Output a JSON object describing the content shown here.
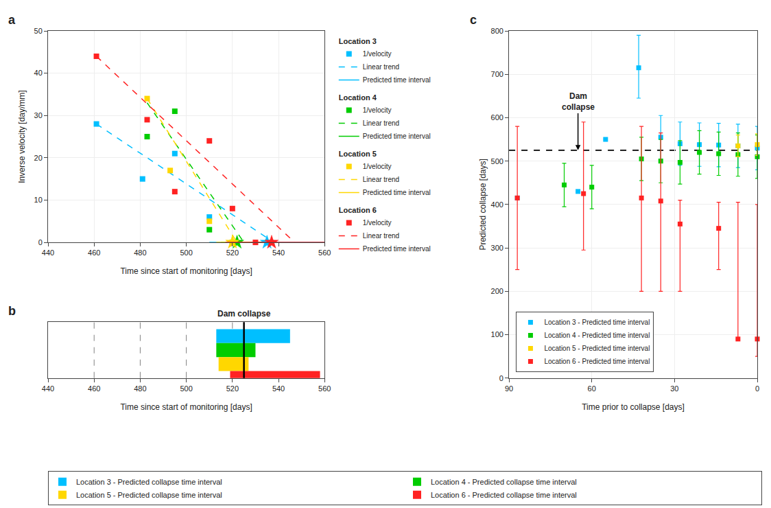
{
  "chart_data": [
    {
      "type": "scatter",
      "title": "a",
      "xlabel": "Time since start of monitoring [days]",
      "ylabel": "Inverse velocity [day/mm]",
      "xlim": [
        440,
        560
      ],
      "xticks": [
        440,
        460,
        480,
        500,
        520,
        540,
        560
      ],
      "ylim": [
        0,
        50
      ],
      "yticks": [
        0,
        10,
        20,
        30,
        40,
        50
      ],
      "grid": true,
      "legend": "right",
      "series": [
        {
          "name": "1/velocity",
          "group": "Location 3",
          "color": "#00BFFF",
          "type": "scatter",
          "marker": "square",
          "x": [
            461,
            481,
            495,
            510,
            520
          ],
          "values": [
            28,
            15,
            21,
            6,
            0
          ]
        },
        {
          "name": "Linear trend",
          "group": "Location 3",
          "color": "#00BFFF",
          "type": "line",
          "line_style": "dashed",
          "x": [
            461,
            538
          ],
          "values": [
            28,
            0
          ]
        },
        {
          "name": "Predicted time interval",
          "group": "Location 3",
          "color": "#00BFFF",
          "type": "line",
          "line_style": "solid",
          "marker": "star",
          "x": [
            510,
            560
          ],
          "values": [
            0,
            0
          ],
          "marker_at": {
            "x": 535,
            "y": 0
          }
        },
        {
          "name": "1/velocity",
          "group": "Location 4",
          "color": "#00CC00",
          "type": "scatter",
          "marker": "square",
          "x": [
            483,
            495,
            510,
            520
          ],
          "values": [
            25,
            31,
            3,
            0
          ]
        },
        {
          "name": "Linear trend",
          "group": "Location 4",
          "color": "#00CC00",
          "type": "line",
          "line_style": "dashed",
          "x": [
            483,
            525
          ],
          "values": [
            33,
            0
          ]
        },
        {
          "name": "Predicted time interval",
          "group": "Location 4",
          "color": "#00CC00",
          "type": "line",
          "line_style": "solid",
          "marker": "star",
          "x": [
            515,
            533
          ],
          "values": [
            0,
            0
          ],
          "marker_at": {
            "x": 522,
            "y": 0
          }
        },
        {
          "name": "1/velocity",
          "group": "Location 5",
          "color": "#FFD700",
          "type": "scatter",
          "marker": "square",
          "x": [
            483,
            493,
            510,
            520
          ],
          "values": [
            34,
            17,
            5,
            0
          ]
        },
        {
          "name": "Linear trend",
          "group": "Location 5",
          "color": "#FFD700",
          "type": "line",
          "line_style": "dashed",
          "x": [
            483,
            522
          ],
          "values": [
            34,
            0
          ]
        },
        {
          "name": "Predicted time interval",
          "group": "Location 5",
          "color": "#FFD700",
          "type": "line",
          "line_style": "solid",
          "marker": "star",
          "x": [
            513,
            528
          ],
          "values": [
            0,
            0
          ],
          "marker_at": {
            "x": 520,
            "y": 0
          }
        },
        {
          "name": "1/velocity",
          "group": "Location 6",
          "color": "#FF2222",
          "type": "scatter",
          "marker": "square",
          "x": [
            461,
            483,
            495,
            510,
            520,
            530
          ],
          "values": [
            44,
            29,
            12,
            24,
            8,
            0
          ]
        },
        {
          "name": "Linear trend",
          "group": "Location 6",
          "color": "#FF2222",
          "type": "line",
          "line_style": "dashed",
          "x": [
            461,
            547
          ],
          "values": [
            44,
            0
          ]
        },
        {
          "name": "Predicted time interval",
          "group": "Location 6",
          "color": "#FF2222",
          "type": "line",
          "line_style": "solid",
          "marker": "star",
          "x": [
            517,
            560
          ],
          "values": [
            0,
            0
          ],
          "marker_at": {
            "x": 537,
            "y": 0
          }
        }
      ]
    },
    {
      "type": "bar",
      "orientation": "horizontal",
      "title": "b",
      "xlabel": "Time since start of monitoring [days]",
      "xlim": [
        440,
        560
      ],
      "xticks": [
        440,
        460,
        480,
        500,
        520,
        540,
        560
      ],
      "ylim": [
        0,
        4
      ],
      "tick_labels": "x",
      "grid": false,
      "legend": "bottom",
      "vlines": [
        460,
        480,
        500,
        520
      ],
      "collapse_line": {
        "x": 525,
        "text": "Dam collapse"
      },
      "series": [
        {
          "name": "Location 3 - Predicted collapse time interval",
          "color": "#00BFFF",
          "xmin": 513,
          "xmax": 545,
          "y": 3,
          "height": 1
        },
        {
          "name": "Location 4 - Predicted collapse time interval",
          "color": "#00CC00",
          "xmin": 513,
          "xmax": 530,
          "y": 2,
          "height": 1
        },
        {
          "name": "Location 5 - Predicted collapse time interval",
          "color": "#FFD700",
          "xmin": 514,
          "xmax": 527,
          "y": 1,
          "height": 1
        },
        {
          "name": "Location 6 - Predicted collapse time interval",
          "color": "#FF2222",
          "xmin": 519,
          "xmax": 558,
          "y": 0,
          "height": 1
        }
      ]
    },
    {
      "type": "scatter",
      "title": "c",
      "xlabel": "Time prior to collapse [days]",
      "ylabel": "Predicted collapse [days]",
      "xlim": [
        90,
        0
      ],
      "xticks": [
        90,
        60,
        30,
        0
      ],
      "ylim": [
        0,
        800
      ],
      "yticks": [
        0,
        100,
        200,
        300,
        400,
        500,
        600,
        700,
        800
      ],
      "grid": true,
      "legend": "lower left",
      "marker": "square",
      "series": [
        {
          "name": "Location 3 - Predicted time interval",
          "color": "#00BFFF",
          "x": [
            87,
            65,
            55,
            43,
            35,
            28,
            21,
            14,
            7,
            0
          ],
          "values": [
            415,
            430,
            550,
            715,
            555,
            540,
            538,
            537,
            535,
            530
          ],
          "error_low": [
            0,
            0,
            0,
            70,
            50,
            50,
            50,
            50,
            50,
            50
          ],
          "error_high": [
            0,
            0,
            0,
            75,
            50,
            50,
            50,
            50,
            50,
            50
          ]
        },
        {
          "name": "Location 4 - Predicted time interval",
          "color": "#00CC00",
          "x": [
            70,
            60,
            42,
            35,
            28,
            21,
            14,
            7,
            0
          ],
          "values": [
            445,
            440,
            505,
            500,
            497,
            520,
            517,
            515,
            510
          ],
          "error_low": [
            50,
            50,
            50,
            50,
            50,
            50,
            50,
            50,
            50
          ],
          "error_high": [
            50,
            50,
            50,
            50,
            50,
            50,
            50,
            50,
            50
          ]
        },
        {
          "name": "Location 5 - Predicted time interval",
          "color": "#FFD700",
          "x": [
            7,
            0
          ],
          "values": [
            535,
            538
          ],
          "error_low": [
            25,
            25
          ],
          "error_high": [
            25,
            25
          ]
        },
        {
          "name": "Location 6 - Predicted time interval",
          "color": "#FF2222",
          "x": [
            87,
            63,
            42,
            35,
            28,
            14,
            7,
            0
          ],
          "values": [
            415,
            425,
            415,
            408,
            355,
            345,
            90,
            90
          ],
          "error_low": [
            165,
            130,
            215,
            208,
            155,
            95,
            0,
            40
          ],
          "error_high": [
            165,
            165,
            165,
            157,
            55,
            60,
            315,
            310
          ]
        }
      ],
      "hlines": [
        {
          "y": 525,
          "line_style": "dashed"
        }
      ],
      "annotations": [
        {
          "text": "Dam\ncollapse",
          "x": 65,
          "y": 525,
          "text_x": 65,
          "text_y": 610
        }
      ]
    }
  ]
}
